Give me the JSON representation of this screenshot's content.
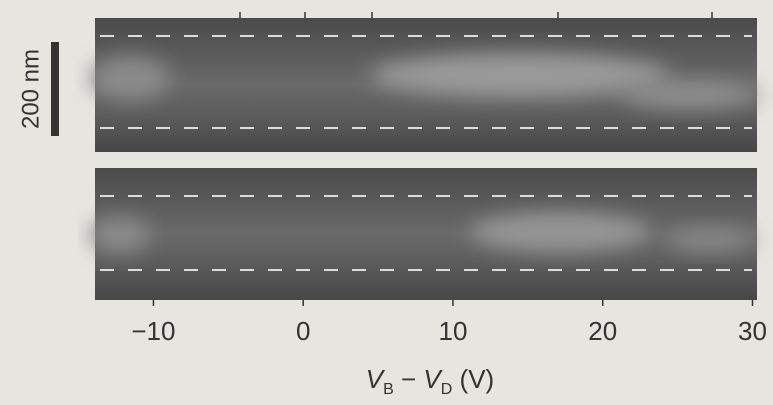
{
  "chart_data": {
    "type": "heatmap-figure",
    "xlabel_parts": [
      "V",
      "B",
      " − ",
      "V",
      "D",
      " (V)"
    ],
    "scale_bar_label": "200 nm",
    "xlim": [
      -13.9,
      30.3
    ],
    "xticks": [
      {
        "value": -10,
        "label": "−10"
      },
      0,
      10,
      20,
      30
    ]
  }
}
